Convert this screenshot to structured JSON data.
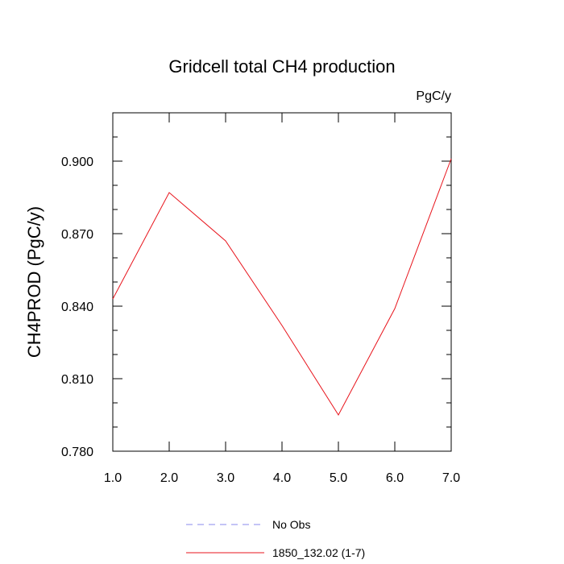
{
  "chart_data": {
    "type": "line",
    "title": "Gridcell total CH4 production",
    "units": "PgC/y",
    "xlabel": "",
    "ylabel": "CH4PROD  (PgC/y)",
    "xlim": [
      1.0,
      7.0
    ],
    "ylim": [
      0.78,
      0.92
    ],
    "xticks": [
      "1.0",
      "2.0",
      "3.0",
      "4.0",
      "5.0",
      "6.0",
      "7.0"
    ],
    "yticks": [
      "0.780",
      "0.810",
      "0.840",
      "0.870",
      "0.900"
    ],
    "x": [
      1,
      2,
      3,
      4,
      5,
      6,
      7
    ],
    "series": [
      {
        "name": "1850_132.02 (1-7)",
        "color": "#e8141c",
        "style": "solid",
        "values": [
          0.843,
          0.887,
          0.867,
          0.832,
          0.795,
          0.839,
          0.901
        ]
      }
    ],
    "legend": [
      {
        "label": "No Obs",
        "color": "#8888ee",
        "style": "dashed"
      },
      {
        "label": "1850_132.02 (1-7)",
        "color": "#e8141c",
        "style": "solid"
      }
    ],
    "legend_position": "bottom-center",
    "grid": false
  }
}
